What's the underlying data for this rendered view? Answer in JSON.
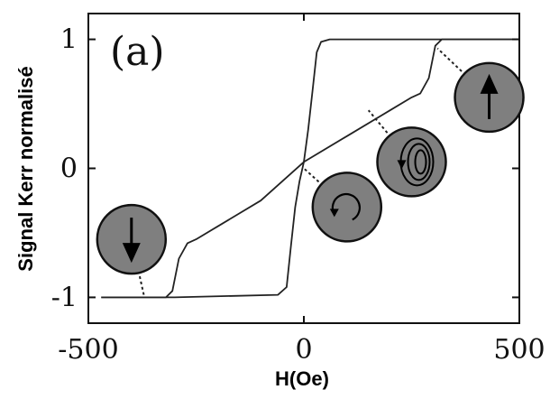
{
  "chart_data": {
    "type": "line",
    "panel_label": "(a)",
    "xlabel": "H(Oe)",
    "ylabel": "Signal Kerr normalisé",
    "xlim": [
      -500,
      500
    ],
    "ylim": [
      -1.2,
      1.2
    ],
    "x_ticks": [
      -500,
      0,
      500
    ],
    "x_tick_labels": [
      "-500",
      "0",
      "500"
    ],
    "y_ticks": [
      -1,
      0,
      1
    ],
    "y_tick_labels": [
      "-1",
      "0",
      "1"
    ],
    "grid": false,
    "legend": "none",
    "series": [
      {
        "label": "",
        "x": [
          -470,
          -300,
          -60,
          -40,
          -30,
          -20,
          -10,
          0,
          10,
          20,
          30,
          40,
          60,
          300,
          500
        ],
        "y": [
          -1.0,
          -1.0,
          -0.98,
          -0.92,
          -0.6,
          -0.3,
          -0.1,
          0.05,
          0.3,
          0.6,
          0.9,
          0.98,
          1.0,
          1.0,
          1.0
        ]
      },
      {
        "label": "",
        "x": [
          -470,
          -320,
          -305,
          -290,
          -270,
          -250,
          -200,
          -100,
          0,
          100,
          200,
          250,
          270,
          290,
          305,
          320,
          500
        ],
        "y": [
          -1.0,
          -1.0,
          -0.95,
          -0.7,
          -0.58,
          -0.55,
          -0.45,
          -0.25,
          0.05,
          0.25,
          0.45,
          0.55,
          0.58,
          0.7,
          0.95,
          1.0,
          1.0
        ]
      }
    ],
    "annotations": [
      {
        "name": "spin-down-state",
        "icon": "arrow-down-icon",
        "center": [
          -400,
          -0.55
        ],
        "point_to": [
          -370,
          -1.0
        ]
      },
      {
        "name": "vortex-state",
        "icon": "vortex-icon",
        "center": [
          100,
          -0.3
        ],
        "point_to": [
          0,
          0.0
        ]
      },
      {
        "name": "multi-vortex-state",
        "icon": "spiral-icon",
        "center": [
          250,
          0.05
        ],
        "point_to": [
          150,
          0.45
        ]
      },
      {
        "name": "spin-up-state",
        "icon": "arrow-up-icon",
        "center": [
          430,
          0.55
        ],
        "point_to": [
          310,
          0.93
        ]
      }
    ],
    "colors": {
      "curve": "#222222",
      "axis": "#111111",
      "disk_fill": "#7f7f7f",
      "disk_stroke": "#111111",
      "background": "#ffffff"
    }
  }
}
